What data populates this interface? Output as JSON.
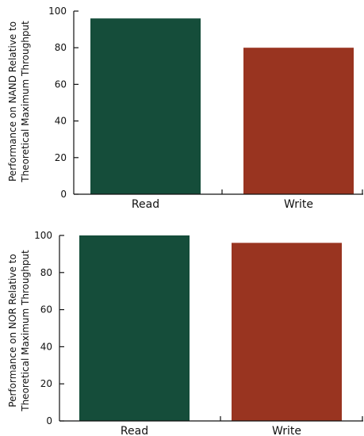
{
  "chart_data": [
    {
      "type": "bar",
      "title": "",
      "categories": [
        "Read",
        "Write"
      ],
      "values": [
        96,
        80
      ],
      "colors": [
        "#154d3a",
        "#993420"
      ],
      "ylabel": [
        "Performance on NAND Relative to",
        "Theoretical Maximum Throughput"
      ],
      "xlabel": "",
      "ylim": [
        0,
        100
      ],
      "yticks": [
        0,
        20,
        40,
        60,
        80,
        100
      ],
      "grid": false
    },
    {
      "type": "bar",
      "title": "",
      "categories": [
        "Read",
        "Write"
      ],
      "values": [
        100,
        96
      ],
      "colors": [
        "#154d3a",
        "#993420"
      ],
      "ylabel": [
        "Performance on NOR Relative to",
        "Theoretical Maximum Throughput"
      ],
      "xlabel": "",
      "ylim": [
        0,
        100
      ],
      "yticks": [
        0,
        20,
        40,
        60,
        80,
        100
      ],
      "grid": false
    }
  ]
}
